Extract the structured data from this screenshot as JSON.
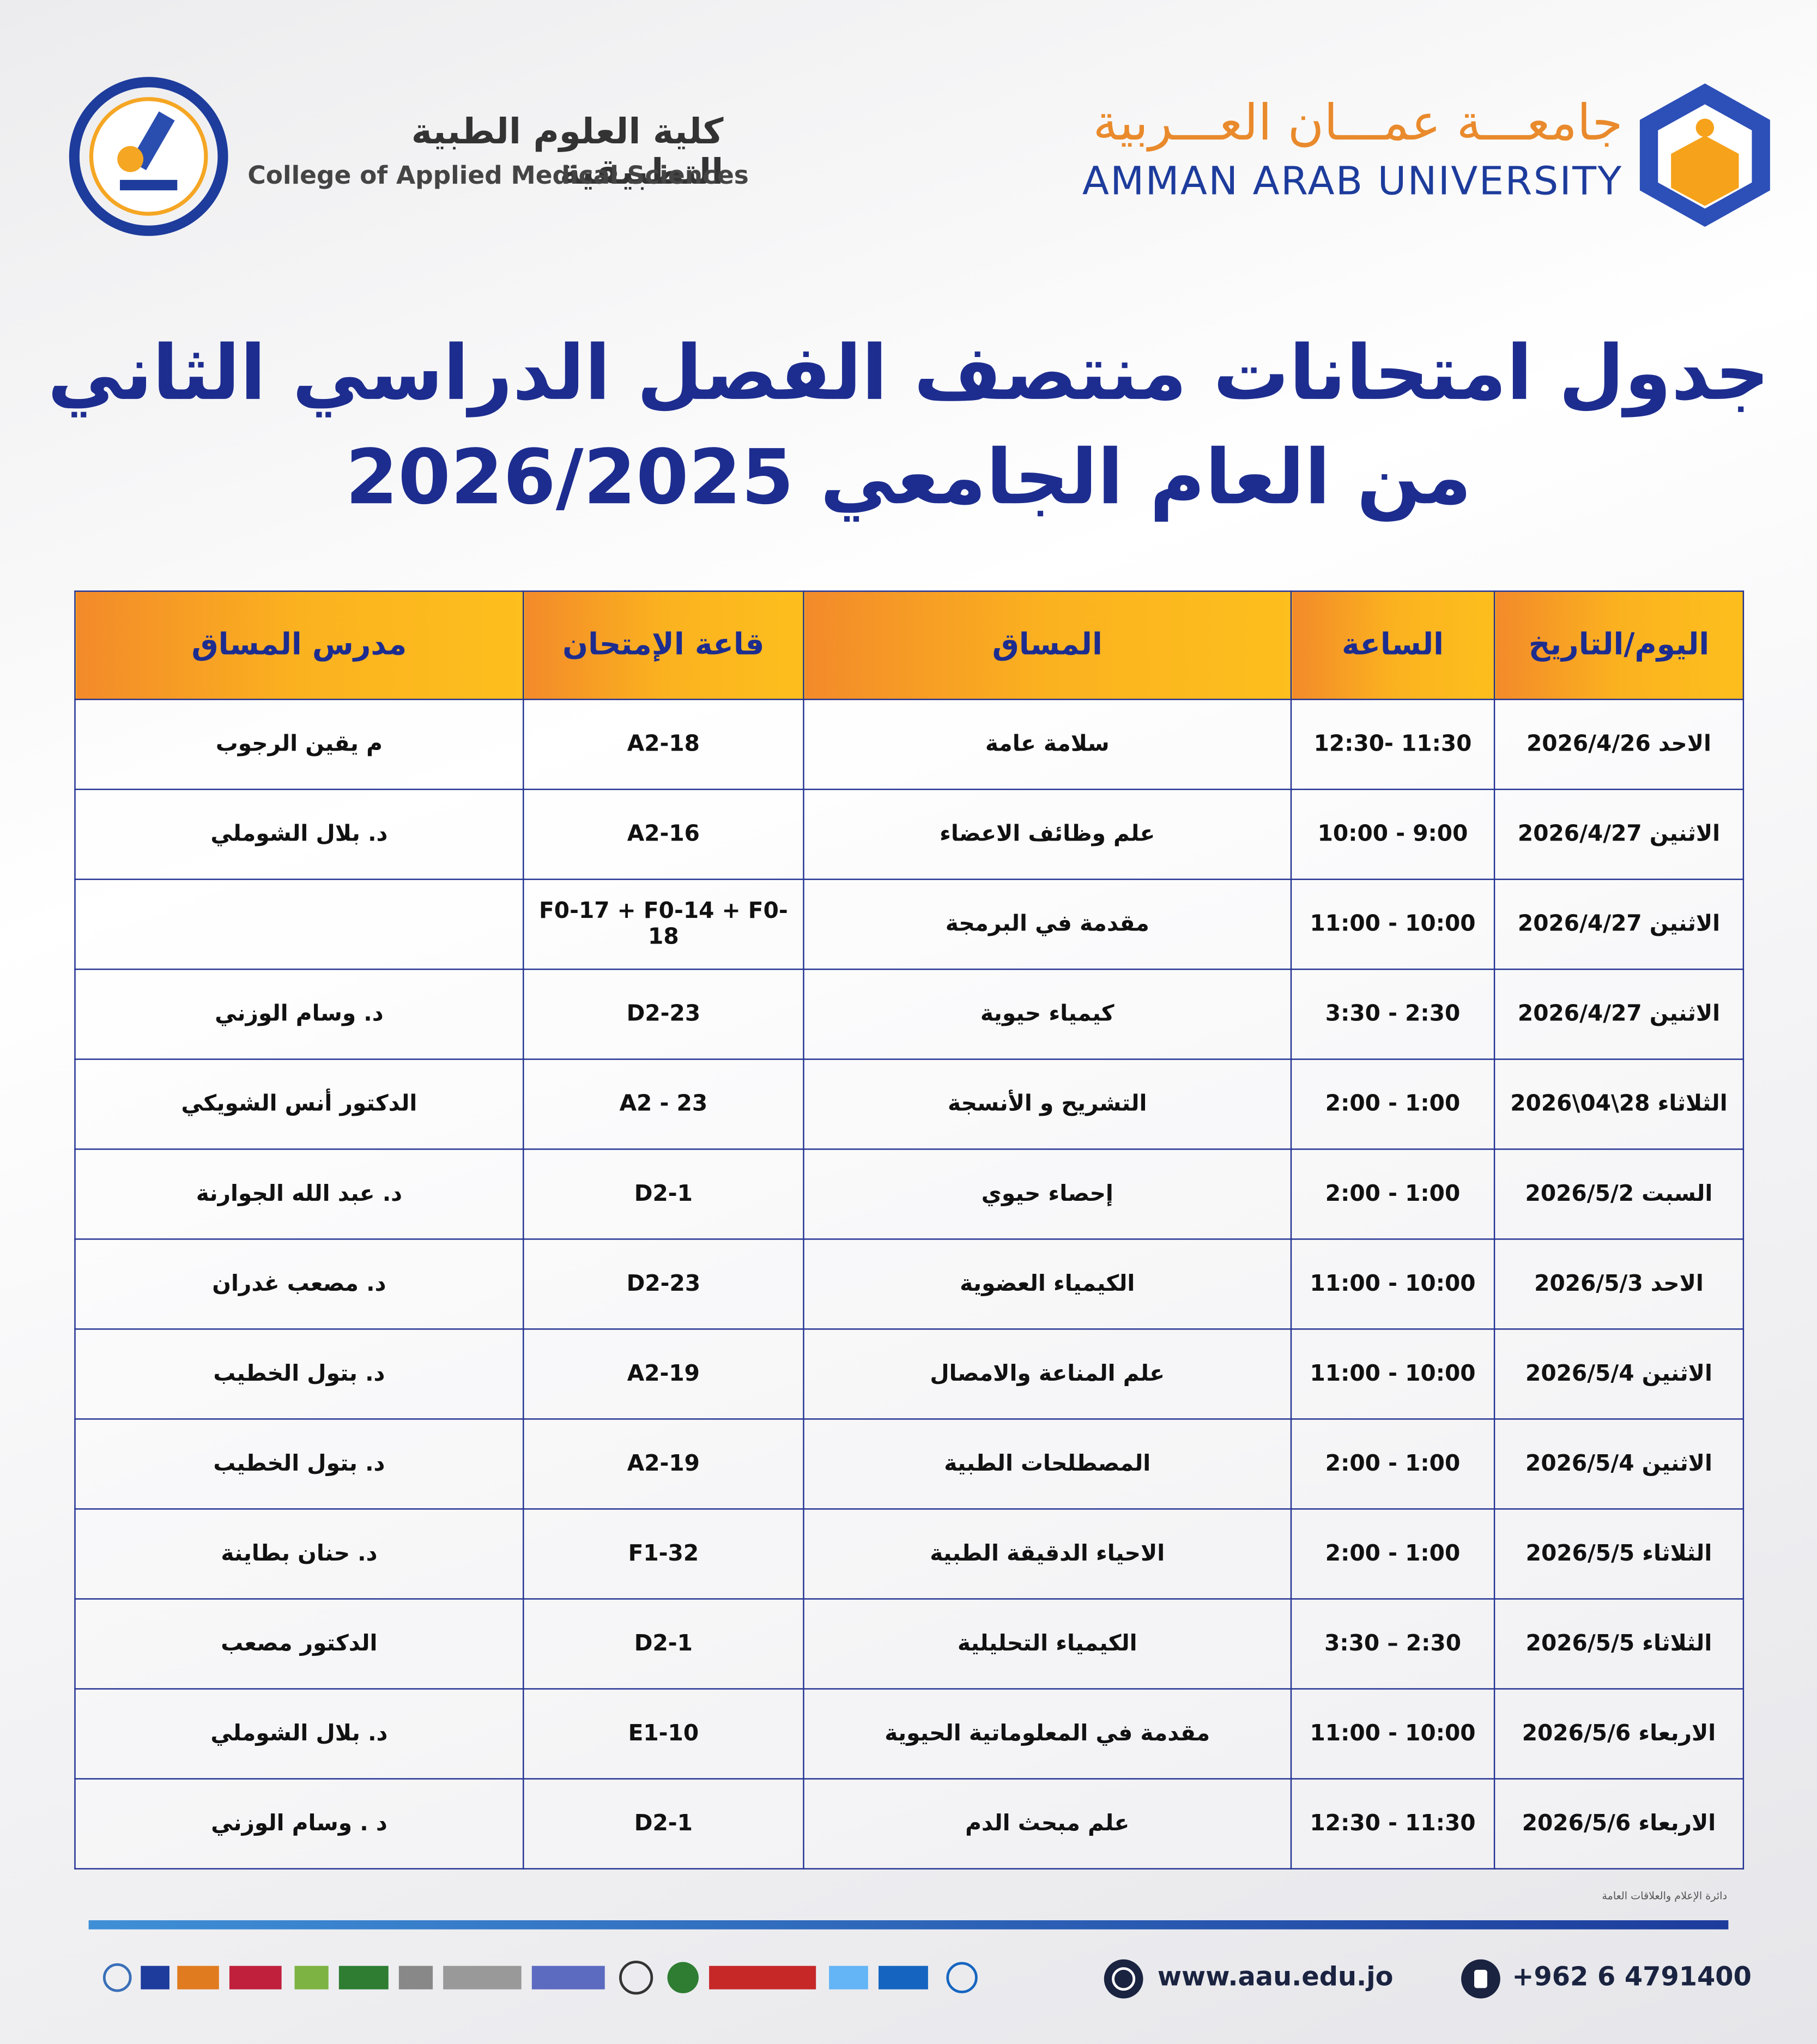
{
  "header": {
    "college_ar": "كلية العلوم الطبية التطبيقية",
    "college_en": "College of Applied Medical Sciences",
    "university_ar": "جامعـــة عمـــان العـــربية",
    "university_en": "AMMAN ARAB UNIVERSITY"
  },
  "title": {
    "line1": "جدول امتحانات منتصف الفصل الدراسي الثاني",
    "line2": "من العام الجامعي 2026/2025"
  },
  "table": {
    "columns": [
      "اليوم/التاريخ",
      "الساعة",
      "المساق",
      "قاعة الإمتحان",
      "مدرس المساق"
    ],
    "rows": [
      [
        "الاحد 2026/4/26",
        "12:30- 11:30",
        "سلامة عامة",
        "A2-18",
        "م يقين الرجوب"
      ],
      [
        "الاثنين 2026/4/27",
        "10:00 - 9:00",
        "علم وظائف الاعضاء",
        "A2-16",
        "د. بلال الشوملي"
      ],
      [
        "الاثنين 2026/4/27",
        "11:00 - 10:00",
        "مقدمة في البرمجة",
        "F0-17 + F0-14 + F0-18",
        null
      ],
      [
        "الاثنين 2026/4/27",
        "3:30 - 2:30",
        "كيمياء حيوية",
        "D2-23",
        "د. وسام الوزني"
      ],
      [
        "الثلاثاء 28\\04\\2026",
        "2:00 - 1:00",
        "التشريح و الأنسجة",
        "A2 - 23",
        "الدكتور أنس الشويكي"
      ],
      [
        "السبت 2026/5/2",
        "2:00 - 1:00",
        "إحصاء حيوي",
        "D2-1",
        "د. عبد الله الجوارنة"
      ],
      [
        "الاحد 2026/5/3",
        "11:00 - 10:00",
        "الكيمياء العضوية",
        "D2-23",
        "د. مصعب غدران"
      ],
      [
        "الاثنين 2026/5/4",
        "11:00 - 10:00",
        "علم المناعة والامصال",
        "A2-19",
        "د. بتول الخطيب"
      ],
      [
        "الاثنين 2026/5/4",
        "2:00 - 1:00",
        "المصطلحات الطبية",
        "A2-19",
        "د. بتول الخطيب"
      ],
      [
        "الثلاثاء 2026/5/5",
        "2:00 - 1:00",
        "الاحياء الدقيقة الطبية",
        "F1-32",
        "د. حنان بطاينة"
      ],
      [
        "الثلاثاء 2026/5/5",
        "3:30 – 2:30",
        "الكيمياء التحليلية",
        "D2-1",
        "الدكتور مصعب"
      ],
      [
        "الاربعاء 2026/5/6",
        "11:00 - 10:00",
        "مقدمة في المعلوماتية الحيوية",
        "E1-10",
        "د. بلال الشوملي"
      ],
      [
        "الاربعاء 2026/5/6",
        "12:30 - 11:30",
        "علم مبحث الدم",
        "D2-1",
        "د . وسام الوزني"
      ]
    ]
  },
  "footer": {
    "department": "دائرة الإعلام والعلاقات العامة",
    "website": "www.aau.edu.jo",
    "phone": "+962 6 4791400"
  }
}
